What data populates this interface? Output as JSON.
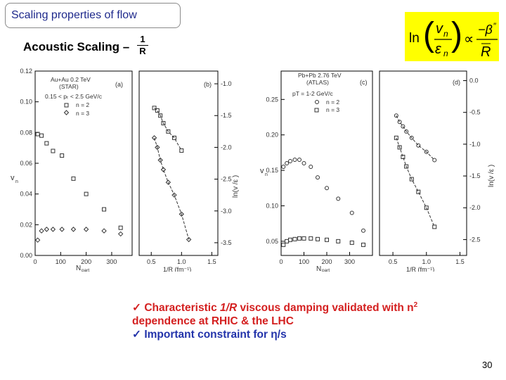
{
  "slide_title": "Scaling properties of flow",
  "heading": "Acoustic Scaling –",
  "heading_frac": {
    "num": "1",
    "den": "R"
  },
  "equation": {
    "ln": "ln",
    "vn": "v",
    "sub_n": "n",
    "eps": "ε",
    "prop": "∝",
    "minus_beta": "−β",
    "beta_prime": "″",
    "R": "R"
  },
  "panel_a": {
    "tag": "(a)",
    "legend": [
      "Au+Au 0.2 TeV",
      "(STAR)",
      "0.15 < pₜ < 2.5 GeV/c",
      "n = 2",
      "n = 3"
    ],
    "ylabel": "v",
    "ylabel_sub": "n",
    "xlabel": "N",
    "xlabel_sub": "part",
    "yticks": [
      "0.12",
      "0.10",
      "0.08",
      "0.06",
      "0.04",
      "0.02",
      "0.00"
    ],
    "xticks": [
      "0",
      "100",
      "200",
      "300"
    ]
  },
  "panel_b": {
    "tag": "(b)",
    "ylabel": "ln(v /ε )",
    "xlabel": "1/R (fm⁻¹)",
    "yticks": [
      "-1.0",
      "-1.5",
      "-2.0",
      "-2.5",
      "-3.0",
      "-3.5"
    ],
    "xticks": [
      "0.5",
      "1.0",
      "1.5"
    ]
  },
  "panel_c": {
    "tag": "(c)",
    "legend": [
      "Pb+Pb 2.76 TeV",
      "(ATLAS)",
      "pT = 1-2 GeV/c",
      "n = 2",
      "n = 3"
    ],
    "ylabel": "v",
    "ylabel_sub": "n",
    "xlabel": "N",
    "xlabel_sub": "part",
    "yticks": [
      "0.25",
      "0.20",
      "0.15",
      "0.10",
      "0.05"
    ],
    "xticks": [
      "0",
      "100",
      "200",
      "300"
    ]
  },
  "panel_d": {
    "tag": "(d)",
    "ylabel": "ln(v /ε )",
    "xlabel": "1/R (fm⁻¹)",
    "yticks": [
      "0.0",
      "-0.5",
      "-1.0",
      "-1.5",
      "-2.0",
      "-2.5"
    ],
    "xticks": [
      "0.5",
      "1.0",
      "1.5"
    ]
  },
  "bullets": {
    "check": "✓",
    "line1_a": "Characteristic ",
    "line1_frac": "1/R",
    "line1_b": " viscous damping validated with n",
    "line1_sup": "2",
    "line2": "dependence  at RHIC & the LHC",
    "line3": "Important constraint for η/s"
  },
  "page_number": "30",
  "chart_data": [
    {
      "type": "scatter",
      "title": "",
      "xlabel": "Npart",
      "ylabel": "vn",
      "xlim": [
        0,
        380
      ],
      "ylim": [
        0,
        0.12
      ],
      "series": [
        {
          "name": "n = 2",
          "x": [
            10,
            25,
            45,
            70,
            105,
            150,
            200,
            270,
            335
          ],
          "y": [
            0.079,
            0.078,
            0.073,
            0.068,
            0.065,
            0.05,
            0.04,
            0.03,
            0.018
          ]
        },
        {
          "name": "n = 3",
          "x": [
            10,
            25,
            45,
            70,
            105,
            150,
            200,
            270,
            335
          ],
          "y": [
            0.01,
            0.016,
            0.017,
            0.017,
            0.017,
            0.017,
            0.017,
            0.016,
            0.014
          ]
        }
      ]
    },
    {
      "type": "scatter",
      "title": "",
      "xlabel": "1/R (fm-1)",
      "ylabel": "ln(vn/en)",
      "xlim": [
        0.3,
        1.6
      ],
      "ylim": [
        -3.7,
        -0.8
      ],
      "series": [
        {
          "name": "n = 2",
          "x": [
            0.55,
            0.6,
            0.65,
            0.7,
            0.78,
            0.88,
            1.0
          ],
          "y": [
            -1.38,
            -1.42,
            -1.5,
            -1.62,
            -1.75,
            -1.85,
            -2.05
          ]
        },
        {
          "name": "n = 3",
          "x": [
            0.55,
            0.6,
            0.65,
            0.7,
            0.78,
            0.88,
            1.0,
            1.12
          ],
          "y": [
            -1.85,
            -2.0,
            -2.2,
            -2.35,
            -2.55,
            -2.75,
            -3.05,
            -3.45
          ]
        }
      ]
    },
    {
      "type": "scatter",
      "title": "",
      "xlabel": "Npart",
      "ylabel": "vn",
      "xlim": [
        0,
        400
      ],
      "ylim": [
        0.03,
        0.29
      ],
      "series": [
        {
          "name": "n = 2",
          "x": [
            10,
            25,
            40,
            60,
            80,
            100,
            130,
            160,
            200,
            250,
            310,
            360
          ],
          "y": [
            0.155,
            0.16,
            0.163,
            0.165,
            0.165,
            0.16,
            0.155,
            0.14,
            0.125,
            0.11,
            0.09,
            0.065
          ]
        },
        {
          "name": "n = 3",
          "x": [
            10,
            25,
            40,
            60,
            80,
            100,
            130,
            160,
            200,
            250,
            310,
            360
          ],
          "y": [
            0.045,
            0.05,
            0.052,
            0.053,
            0.054,
            0.054,
            0.054,
            0.053,
            0.052,
            0.05,
            0.048,
            0.045
          ]
        }
      ]
    },
    {
      "type": "scatter",
      "title": "",
      "xlabel": "1/R (fm-1)",
      "ylabel": "ln(vn/en)",
      "xlim": [
        0.3,
        1.6
      ],
      "ylim": [
        -2.75,
        0.15
      ],
      "series": [
        {
          "name": "n = 2",
          "x": [
            0.55,
            0.6,
            0.65,
            0.7,
            0.78,
            0.88,
            1.0,
            1.12
          ],
          "y": [
            -0.55,
            -0.65,
            -0.72,
            -0.8,
            -0.9,
            -1.02,
            -1.12,
            -1.25
          ]
        },
        {
          "name": "n = 3",
          "x": [
            0.55,
            0.6,
            0.65,
            0.7,
            0.78,
            0.88,
            1.0,
            1.12
          ],
          "y": [
            -0.9,
            -1.05,
            -1.2,
            -1.35,
            -1.55,
            -1.75,
            -2.0,
            -2.3
          ]
        }
      ]
    }
  ]
}
